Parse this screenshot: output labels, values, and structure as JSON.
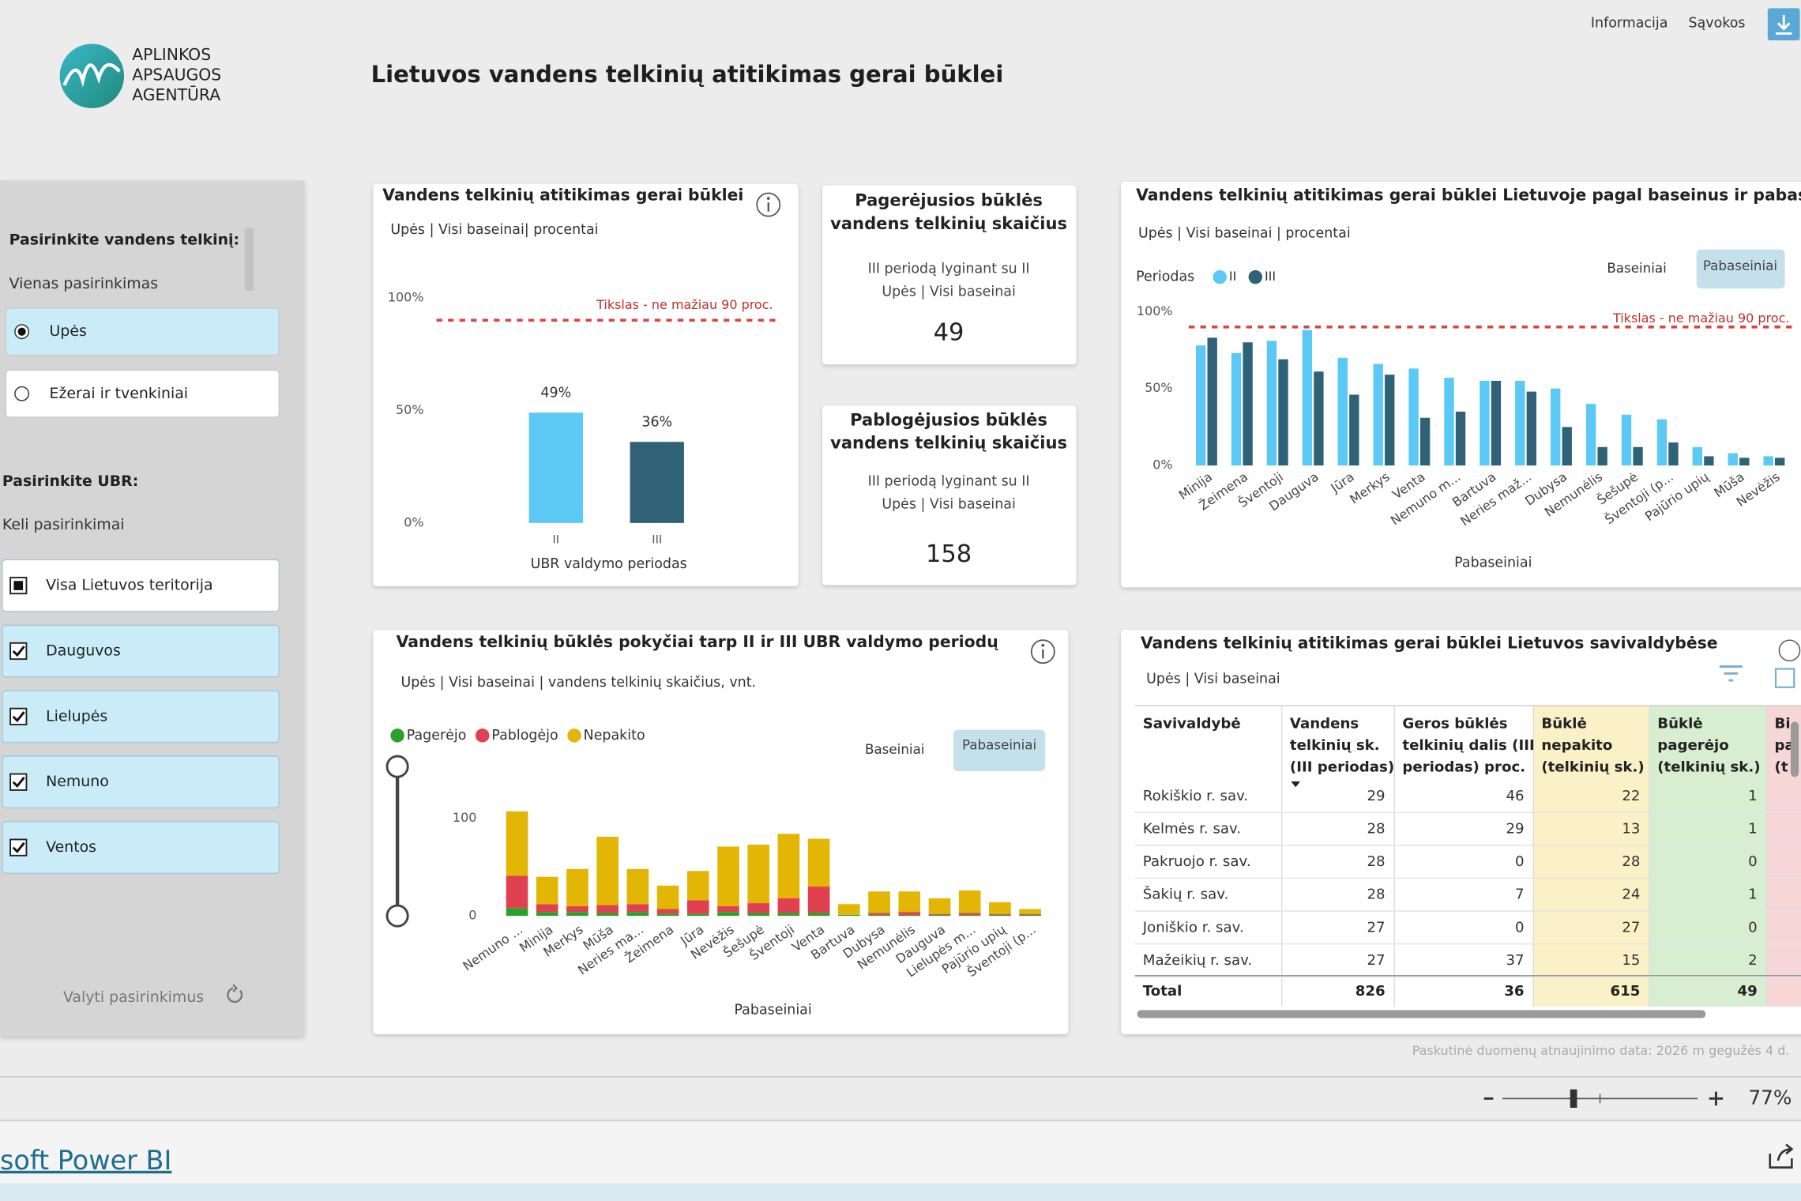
{
  "header": {
    "logo_lines": [
      "APLINKOS",
      "APSAUGOS",
      "AGENTŪRA"
    ],
    "title": "Lietuvos vandens telkinių atitikimas gerai būklei",
    "nav": [
      "Informacija",
      "Sąvokos"
    ]
  },
  "sidebar": {
    "water_label": "Pasirinkite vandens telkinį:",
    "water_mode": "Vienas pasirinkimas",
    "water_options": [
      "Upės",
      "Ežerai ir tvenkiniai"
    ],
    "ubr_label": "Pasirinkite UBR:",
    "ubr_mode": "Keli pasirinkimai",
    "ubr_options": [
      "Visa Lietuvos teritorija",
      "Dauguvos",
      "Lielupės",
      "Nemuno",
      "Ventos"
    ],
    "reset": "Valyti pasirinkimus"
  },
  "cards": [
    {
      "title_lines": [
        "Pagerėjusios būklės",
        "vandens telkinių skaičius"
      ],
      "subtitle_lines": [
        "III periodą lyginant su II",
        "Upės | Visi baseinai"
      ],
      "value": 49
    },
    {
      "title_lines": [
        "Pablogėjusios būklės",
        "vandens telkinių skaičius"
      ],
      "subtitle_lines": [
        "III periodą lyginant su II",
        "Upės | Visi baseinai"
      ],
      "value": 158
    }
  ],
  "chart_data": [
    {
      "type": "bar",
      "title": "Vandens telkinių atitikimas gerai būklei",
      "subtitle": "Upės | Visi baseinai| procentai",
      "categories": [
        "II",
        "III"
      ],
      "values": [
        49,
        36
      ],
      "value_labels": [
        "49%",
        "36%"
      ],
      "colors": [
        "#5bc8f5",
        "#2f6276"
      ],
      "ylim": [
        0,
        100
      ],
      "yticks": [
        {
          "value": 0,
          "label": "0%"
        },
        {
          "value": 50,
          "label": "50%"
        },
        {
          "value": 100,
          "label": "100%"
        }
      ],
      "target": {
        "value": 90,
        "label": "Tikslas - ne mažiau 90 proc."
      },
      "x_label": "UBR valdymo periodas"
    },
    {
      "type": "grouped_bar",
      "title": "Vandens telkinių atitikimas gerai būklei Lietuvoje pagal baseinus ir pabaseinius",
      "subtitle": "Upės | Visi baseinai | procentai",
      "legend_title": "Periodas",
      "toggles": [
        "Baseiniai",
        "Pabaseiniai"
      ],
      "categories": [
        "Minija",
        "Žeimena",
        "Šventoji",
        "Dauguva",
        "Jūra",
        "Merkys",
        "Venta",
        "Nemuno m...",
        "Bartuva",
        "Neries maž...",
        "Dubysa",
        "Nemunėlis",
        "Šešupė",
        "Šventoji (p...",
        "Pajūrio upių",
        "Mūša",
        "Nevėžis"
      ],
      "series": [
        {
          "name": "II",
          "color": "#5bc8f5",
          "values": [
            78,
            73,
            81,
            88,
            70,
            66,
            63,
            57,
            55,
            55,
            50,
            40,
            33,
            30,
            12,
            8,
            6
          ]
        },
        {
          "name": "III",
          "color": "#2f6276",
          "values": [
            83,
            80,
            69,
            61,
            46,
            59,
            31,
            35,
            55,
            48,
            25,
            12,
            12,
            15,
            6,
            5,
            5
          ]
        }
      ],
      "ylim": [
        0,
        100
      ],
      "yticks": [
        {
          "value": 0,
          "label": "0%"
        },
        {
          "value": 50,
          "label": "50%"
        },
        {
          "value": 100,
          "label": "100%"
        }
      ],
      "target": {
        "value": 90,
        "label": "Tikslas - ne mažiau 90 proc."
      },
      "x_label": "Pabaseiniai"
    },
    {
      "type": "stacked_bar",
      "title": "Vandens telkinių būklės pokyčiai tarp II ir III UBR valdymo periodų",
      "subtitle": "Upės | Visi baseinai | vandens telkinių skaičius, vnt.",
      "toggles": [
        "Baseiniai",
        "Pabaseiniai"
      ],
      "categories": [
        "Nemuno ...",
        "Minija",
        "Merkys",
        "Mūša",
        "Neries ma...",
        "Žeimena",
        "Jūra",
        "Nevėžis",
        "Šešupė",
        "Šventoji",
        "Venta",
        "Bartuva",
        "Dubysa",
        "Nemunėlis",
        "Dauguva",
        "Lielupės m...",
        "Pajūrio upių",
        "Šventoji (p..."
      ],
      "series": [
        {
          "name": "Pagerėjo",
          "color": "#2ca02c",
          "values": [
            8,
            4,
            4,
            3,
            4,
            2,
            2,
            4,
            3,
            3,
            3,
            1,
            1,
            1,
            1,
            1,
            1,
            1
          ]
        },
        {
          "name": "Pablogėjo",
          "color": "#e0404f",
          "values": [
            33,
            8,
            6,
            8,
            8,
            5,
            14,
            6,
            10,
            15,
            27,
            0,
            2,
            3,
            1,
            2,
            1,
            1
          ]
        },
        {
          "name": "Nepakito",
          "color": "#e3b505",
          "values": [
            66,
            28,
            38,
            70,
            36,
            24,
            30,
            61,
            60,
            66,
            49,
            11,
            22,
            21,
            16,
            23,
            12,
            5
          ]
        }
      ],
      "ylim": [
        0,
        115
      ],
      "yticks": [
        0,
        100
      ],
      "x_label": "Pabaseiniai"
    }
  ],
  "table": {
    "title": "Vandens telkinių atitikimas gerai būklei Lietuvos savivaldybėse",
    "subtitle": "Upės | Visi baseinai",
    "columns": [
      [
        "Savivaldybė"
      ],
      [
        "Vandens",
        "telkinių sk.",
        "(III periodas)"
      ],
      [
        "Geros būklės",
        "telkinių dalis (III",
        "periodas) proc."
      ],
      [
        "Būklė",
        "nepakito",
        "(telkinių sk.)"
      ],
      [
        "Būklė",
        "pagerėjo",
        "(telkinių sk.)"
      ],
      [
        "Bi",
        "pa",
        "(t"
      ]
    ],
    "rows": [
      [
        "Rokiškio r. sav.",
        29,
        46,
        22,
        1
      ],
      [
        "Kelmės r. sav.",
        28,
        29,
        13,
        1
      ],
      [
        "Pakruojo r. sav.",
        28,
        0,
        28,
        0
      ],
      [
        "Šakių r. sav.",
        28,
        7,
        24,
        1
      ],
      [
        "Joniškio r. sav.",
        27,
        0,
        27,
        0
      ],
      [
        "Mažeikių r. sav.",
        27,
        37,
        15,
        2
      ]
    ],
    "total": [
      "Total",
      826,
      36,
      615,
      49
    ]
  },
  "footer": {
    "updated": "Paskutinė duomenų atnaujinimo data: 2026 m gegužės 4 d.",
    "zoom": "77%",
    "brand": "soft Power BI"
  }
}
